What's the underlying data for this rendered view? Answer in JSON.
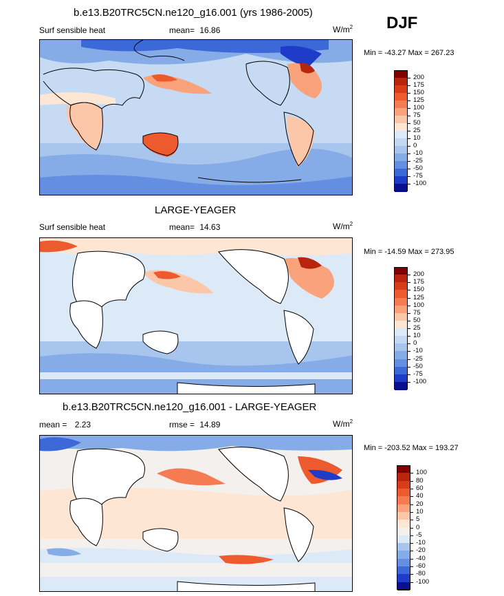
{
  "season": "DJF",
  "panels": [
    {
      "title": "b.e13.B20TRC5CN.ne120_g16.001 (yrs 1986-2005)",
      "left_label": "Surf sensible heat",
      "stat1_label": "mean=",
      "stat1_value": "16.86",
      "stat2_label": "",
      "stat2_value": "",
      "units": "W/m",
      "units_sup": "2",
      "minmax": "Min = -43.27 Max = 267.23"
    },
    {
      "title": "LARGE-YEAGER",
      "left_label": "Surf sensible heat",
      "stat1_label": "mean=",
      "stat1_value": "14.63",
      "stat2_label": "",
      "stat2_value": "",
      "units": "W/m",
      "units_sup": "2",
      "minmax": "Min = -14.59 Max = 273.95"
    },
    {
      "title": "b.e13.B20TRC5CN.ne120_g16.001 - LARGE-YEAGER",
      "left_label": "mean =",
      "stat1_label": "",
      "stat1_value": "2.23",
      "stat2_label": "rmse =",
      "stat2_value": "14.89",
      "units": "W/m",
      "units_sup": "2",
      "minmax": "Min = -203.52 Max = 193.27"
    }
  ],
  "colorbars": [
    {
      "labels": [
        "200",
        "175",
        "150",
        "125",
        "100",
        "75",
        "50",
        "25",
        "10",
        "0",
        "-10",
        "-25",
        "-50",
        "-75",
        "-100"
      ],
      "colors": [
        "#800000",
        "#b8240c",
        "#d83c18",
        "#ec5a2e",
        "#f57c52",
        "#f9a27c",
        "#fcc6a8",
        "#fde6d4",
        "#dce9f6",
        "#c3d8f2",
        "#a8c5ee",
        "#86ace8",
        "#648fe0",
        "#3d68d8",
        "#1e3cc8",
        "#0a1090"
      ]
    },
    {
      "labels": [
        "200",
        "175",
        "150",
        "125",
        "100",
        "75",
        "50",
        "25",
        "10",
        "0",
        "-10",
        "-25",
        "-50",
        "-75",
        "-100"
      ],
      "colors": [
        "#800000",
        "#b8240c",
        "#d83c18",
        "#ec5a2e",
        "#f57c52",
        "#f9a27c",
        "#fcc6a8",
        "#fde6d4",
        "#dce9f6",
        "#c3d8f2",
        "#a8c5ee",
        "#86ace8",
        "#648fe0",
        "#3d68d8",
        "#1e3cc8",
        "#0a1090"
      ]
    },
    {
      "labels": [
        "100",
        "80",
        "60",
        "40",
        "20",
        "10",
        "5",
        "0",
        "-5",
        "-10",
        "-20",
        "-40",
        "-60",
        "-80",
        "-100"
      ],
      "colors": [
        "#800000",
        "#b8240c",
        "#d83c18",
        "#ec5a2e",
        "#f57c52",
        "#f9a27c",
        "#fcc6a8",
        "#fde6d4",
        "#f4f0ee",
        "#dce9f6",
        "#a8c5ee",
        "#86ace8",
        "#648fe0",
        "#3d68d8",
        "#1e3cc8",
        "#0a1090"
      ]
    }
  ],
  "chart_data": [
    {
      "type": "heatmap",
      "title": "b.e13.B20TRC5CN.ne120_g16.001 (yrs 1986-2005)",
      "variable": "Surf sensible heat",
      "units": "W/m2",
      "season": "DJF",
      "mean": 16.86,
      "min": -43.27,
      "max": 267.23,
      "levels": [
        -100,
        -75,
        -50,
        -25,
        -10,
        0,
        10,
        25,
        50,
        75,
        100,
        125,
        150,
        175,
        200
      ]
    },
    {
      "type": "heatmap",
      "title": "LARGE-YEAGER",
      "variable": "Surf sensible heat",
      "units": "W/m2",
      "season": "DJF",
      "mean": 14.63,
      "min": -14.59,
      "max": 273.95,
      "levels": [
        -100,
        -75,
        -50,
        -25,
        -10,
        0,
        10,
        25,
        50,
        75,
        100,
        125,
        150,
        175,
        200
      ]
    },
    {
      "type": "heatmap",
      "title": "b.e13.B20TRC5CN.ne120_g16.001 - LARGE-YEAGER",
      "units": "W/m2",
      "season": "DJF",
      "mean": 2.23,
      "rmse": 14.89,
      "min": -203.52,
      "max": 193.27,
      "levels": [
        -100,
        -80,
        -60,
        -40,
        -20,
        -10,
        -5,
        0,
        5,
        10,
        20,
        40,
        60,
        80,
        100
      ]
    }
  ]
}
